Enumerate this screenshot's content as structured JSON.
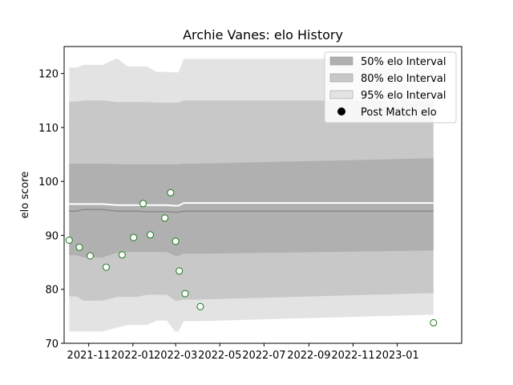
{
  "chart_data": {
    "type": "area",
    "title": "Archie Vanes: elo History",
    "xlabel": "",
    "ylabel": "elo score",
    "xlim": [
      "2021-09-28",
      "2023-03-31"
    ],
    "ylim": [
      70,
      125
    ],
    "y_ticks": [
      70,
      80,
      90,
      100,
      110,
      120
    ],
    "x_tick_labels": [
      {
        "date": "2021-11-01",
        "label": "2021-11"
      },
      {
        "date": "2022-01-01",
        "label": "2022-01"
      },
      {
        "date": "2022-03-01",
        "label": "2022-03"
      },
      {
        "date": "2022-05-01",
        "label": "2022-05"
      },
      {
        "date": "2022-07-01",
        "label": "2022-07"
      },
      {
        "date": "2022-09-01",
        "label": "2022-09"
      },
      {
        "date": "2022-11-01",
        "label": "2022-11"
      },
      {
        "date": "2023-01-01",
        "label": "2023-01"
      }
    ],
    "grid": false,
    "legend_position": "top-right",
    "legend": [
      {
        "label": "50% elo Interval",
        "color": "#b0b0b0",
        "kind": "patch"
      },
      {
        "label": "80% elo Interval",
        "color": "#c8c8c8",
        "kind": "patch"
      },
      {
        "label": "95% elo Interval",
        "color": "#e3e3e3",
        "kind": "patch"
      },
      {
        "label": "Post Match elo",
        "color": "#000000",
        "kind": "marker"
      }
    ],
    "band_dates": [
      "2021-10-05",
      "2021-10-15",
      "2021-10-25",
      "2021-11-06",
      "2021-11-20",
      "2021-12-10",
      "2021-12-25",
      "2022-01-08",
      "2022-01-20",
      "2022-02-03",
      "2022-02-17",
      "2022-02-28",
      "2022-03-05",
      "2022-03-12",
      "2022-04-01",
      "2023-02-20"
    ],
    "bands": {
      "p95": {
        "lower": [
          72.2,
          72.2,
          72.2,
          72.2,
          72.2,
          72.9,
          73.4,
          73.4,
          73.4,
          74.2,
          74.2,
          72.2,
          72.2,
          74.1,
          74.1,
          75.3
        ],
        "upper": [
          121.1,
          121.1,
          121.6,
          121.6,
          121.6,
          122.8,
          121.3,
          121.3,
          121.3,
          120.3,
          120.3,
          120.2,
          120.2,
          122.7,
          122.7,
          122.7
        ]
      },
      "p80": {
        "lower": [
          78.7,
          78.7,
          77.9,
          77.9,
          77.9,
          78.6,
          78.6,
          78.6,
          79.0,
          79.0,
          79.0,
          77.9,
          77.9,
          78.1,
          78.1,
          79.3
        ],
        "upper": [
          114.8,
          114.8,
          115.0,
          115.0,
          115.0,
          114.7,
          114.7,
          114.7,
          114.7,
          114.6,
          114.6,
          114.6,
          114.6,
          115.0,
          115.0,
          115.0
        ]
      },
      "p50": {
        "lower": [
          86.3,
          86.3,
          85.9,
          85.9,
          85.9,
          86.8,
          86.9,
          86.9,
          86.9,
          86.9,
          86.9,
          86.2,
          86.2,
          86.6,
          86.6,
          87.2
        ],
        "upper": [
          103.3,
          103.3,
          103.3,
          103.3,
          103.3,
          103.2,
          103.2,
          103.2,
          103.2,
          103.2,
          103.2,
          103.2,
          103.2,
          103.3,
          103.3,
          104.3
        ]
      }
    },
    "center_lines": [
      {
        "name": "mean",
        "color": "#8a8a8a",
        "width": 1.5,
        "values": [
          94.5,
          94.5,
          94.8,
          94.8,
          94.8,
          94.5,
          94.5,
          94.5,
          94.4,
          94.4,
          94.4,
          94.3,
          94.3,
          94.5,
          94.5,
          94.5
        ]
      },
      {
        "name": "upper",
        "color": "#ffffff",
        "width": 2,
        "values": [
          95.8,
          95.8,
          95.8,
          95.8,
          95.8,
          95.6,
          95.6,
          95.6,
          95.6,
          95.6,
          95.6,
          95.5,
          95.5,
          96.0,
          96.0,
          96.0
        ]
      }
    ],
    "points": [
      {
        "x": "2021-10-05",
        "y": 89.1
      },
      {
        "x": "2021-10-19",
        "y": 87.8
      },
      {
        "x": "2021-11-03",
        "y": 86.2
      },
      {
        "x": "2021-11-25",
        "y": 84.1
      },
      {
        "x": "2021-12-17",
        "y": 86.4
      },
      {
        "x": "2022-01-02",
        "y": 89.6
      },
      {
        "x": "2022-01-15",
        "y": 95.9
      },
      {
        "x": "2022-01-25",
        "y": 90.1
      },
      {
        "x": "2022-02-14",
        "y": 93.2
      },
      {
        "x": "2022-02-22",
        "y": 97.9
      },
      {
        "x": "2022-03-01",
        "y": 88.9
      },
      {
        "x": "2022-03-06",
        "y": 83.4
      },
      {
        "x": "2022-03-14",
        "y": 79.2
      },
      {
        "x": "2022-04-04",
        "y": 76.8
      },
      {
        "x": "2023-02-20",
        "y": 73.8
      }
    ],
    "point_style": {
      "edge": "#1a7a1a",
      "face": "#ffffff"
    }
  }
}
